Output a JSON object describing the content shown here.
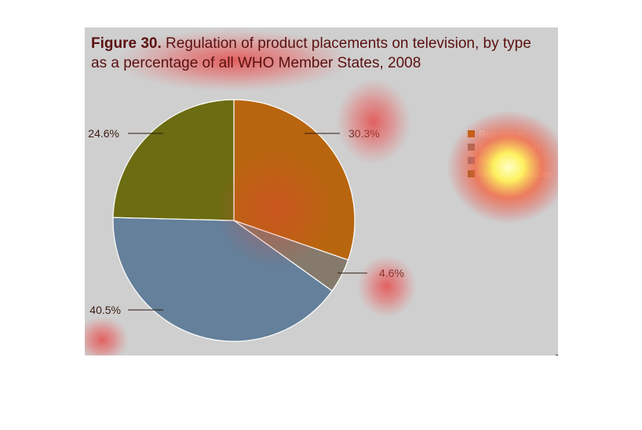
{
  "title": {
    "lead": "Figure 30.",
    "line1_rest": " Regulation of product placements on television, by type",
    "line2": "as a percentage of all WHO Member States, 2008"
  },
  "chart_data": {
    "type": "pie",
    "title": "Figure 30. Regulation of product placements on television, by type as a percentage of all WHO Member States, 2008",
    "legend_position": "right",
    "slices": [
      {
        "name": "Regulation",
        "value": 30.3,
        "label": "30.3%",
        "color": "#b8650f"
      },
      {
        "name": "Self-regulation",
        "value": 4.6,
        "label": "4.6%",
        "color": "#857a6c"
      },
      {
        "name": "No regulation",
        "value": 40.5,
        "label": "40.5%",
        "color": "#64809a"
      },
      {
        "name": "No data available",
        "value": 24.6,
        "label": "24.6%",
        "color": "#6c6c12"
      }
    ]
  },
  "colors": {
    "background": "#cfcfcf",
    "heat_red": "#e43c3c",
    "heat_yellow": "#ffff6a"
  }
}
